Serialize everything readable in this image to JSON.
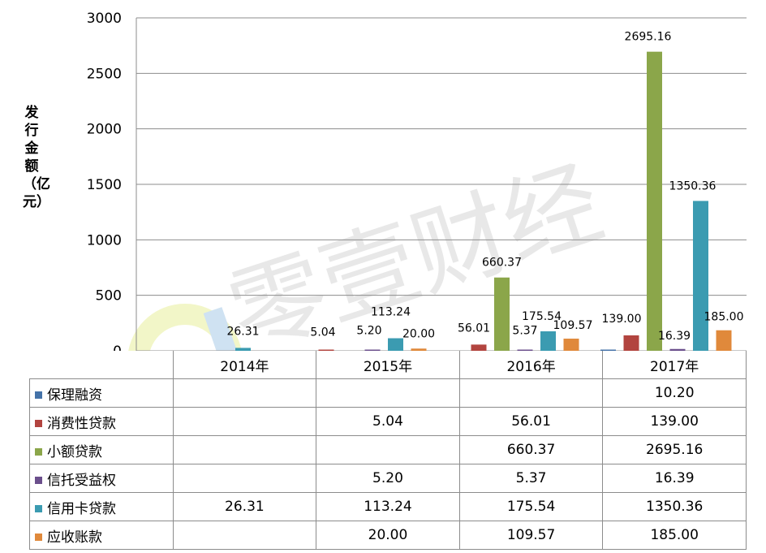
{
  "chart_data": {
    "type": "bar",
    "ylabel": "发行金额（亿元）",
    "ylim": [
      0,
      3000
    ],
    "yticks": [
      0,
      500,
      1000,
      1500,
      2000,
      2500,
      3000
    ],
    "grid": true,
    "legend": "data-table-below",
    "categories": [
      "2014年",
      "2015年",
      "2016年",
      "2017年"
    ],
    "series": [
      {
        "name": "保理融资",
        "color": "#4472a8",
        "values": [
          null,
          null,
          null,
          10.2
        ],
        "labels": [
          "",
          "",
          "",
          "10.20"
        ]
      },
      {
        "name": "消费性贷款",
        "color": "#b2443f",
        "values": [
          null,
          5.04,
          56.01,
          139.0
        ],
        "labels": [
          "",
          "5.04",
          "56.01",
          "139.00"
        ]
      },
      {
        "name": "小额贷款",
        "color": "#8ba64a",
        "values": [
          null,
          null,
          660.37,
          2695.16
        ],
        "labels": [
          "",
          "",
          "660.37",
          "2695.16"
        ]
      },
      {
        "name": "信托受益权",
        "color": "#6b4f8c",
        "values": [
          null,
          5.2,
          5.37,
          16.39
        ],
        "labels": [
          "",
          "5.20",
          "5.37",
          "16.39"
        ]
      },
      {
        "name": "信用卡贷款",
        "color": "#3b9bb1",
        "values": [
          26.31,
          113.24,
          175.54,
          1350.36
        ],
        "labels": [
          "26.31",
          "113.24",
          "175.54",
          "1350.36"
        ]
      },
      {
        "name": "应收账款",
        "color": "#e0893b",
        "values": [
          null,
          20.0,
          109.57,
          185.0
        ],
        "labels": [
          "",
          "20.00",
          "109.57",
          "185.00"
        ]
      }
    ]
  },
  "watermark": {
    "text": "零壹财经"
  }
}
